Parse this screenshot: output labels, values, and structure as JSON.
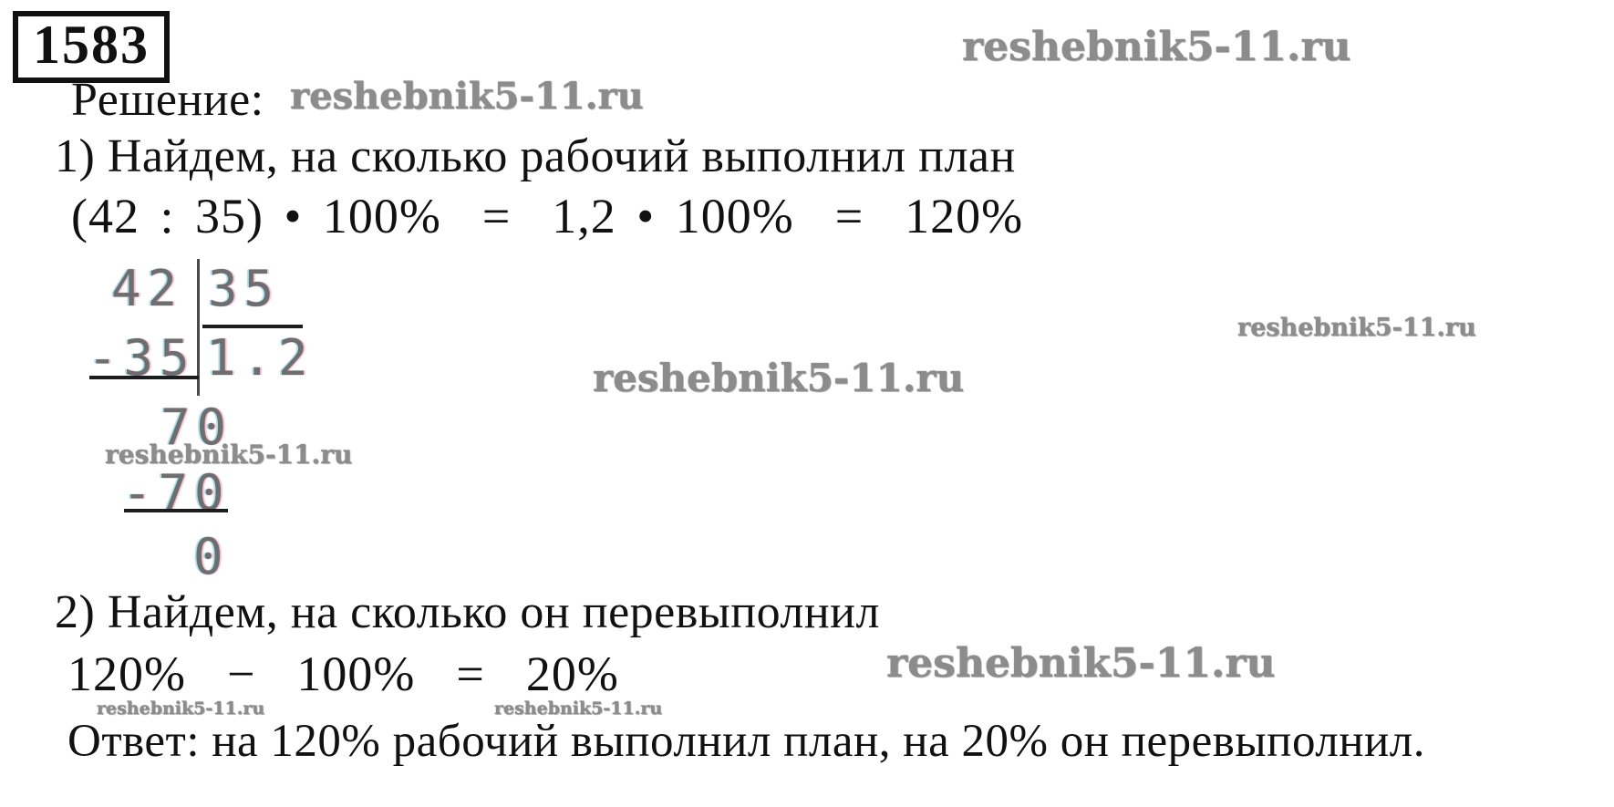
{
  "problem": {
    "number": "1583"
  },
  "watermark": {
    "text": "reshebnik5-11.ru"
  },
  "solution": {
    "label": "Решение:",
    "step1": "1) Найдем, на сколько рабочий выполнил план",
    "equation1": "(42 : 35) • 100%  =  1,2 • 100%  =  120%",
    "step2": "2) Найдем, на сколько он перевыполнил",
    "equation2": "120%  −  100%  =  20%",
    "answer": "Ответ: на 120% рабочий выполнил план, на 20% он перевыполнил."
  },
  "division": {
    "dividend": "42",
    "divisor": "35",
    "subtrahend1": "-35",
    "quotient": "1.2",
    "remainder1": "70",
    "subtrahend2": "-70",
    "remainder2": "0"
  },
  "colors": {
    "text": "#111111",
    "watermark": "#8c8c8c",
    "division_digits": "#6e6e6e"
  }
}
